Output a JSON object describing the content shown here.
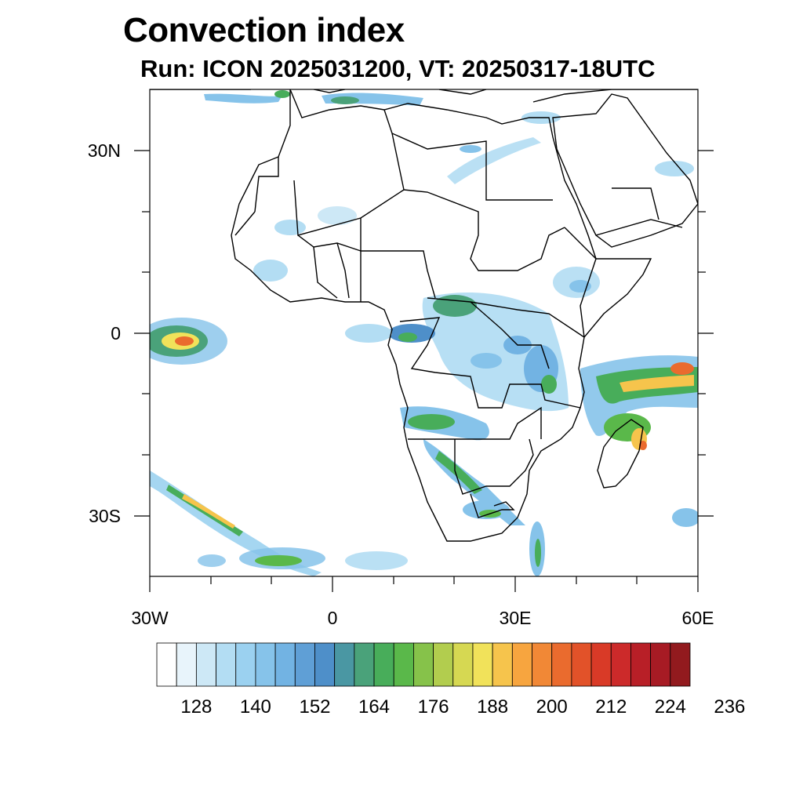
{
  "title": "Convection index",
  "subtitle": "Run: ICON 2025031200,  VT: 20250317-18UTC",
  "axes": {
    "lat_labels": [
      "30N",
      "0",
      "30S"
    ],
    "lon_labels": [
      "30W",
      "0",
      "30E",
      "60E"
    ]
  },
  "map": {
    "region": "Africa",
    "lon_range": [
      -30,
      60
    ],
    "lat_range": [
      -40,
      40
    ],
    "field": "convection index",
    "coastlines": true,
    "country_borders": true
  },
  "colorbar": {
    "tick_labels": [
      "128",
      "140",
      "152",
      "164",
      "176",
      "188",
      "200",
      "212",
      "224",
      "236"
    ],
    "colors": [
      "#ffffff",
      "#e8f4fb",
      "#cde8f6",
      "#b3ddf3",
      "#9bd1f0",
      "#86c3ea",
      "#72b3e3",
      "#5f9fd6",
      "#4e8fc9",
      "#4a97a3",
      "#4aa27a",
      "#48ad5a",
      "#5ab84a",
      "#86c24a",
      "#b2cd4e",
      "#d6d852",
      "#f1e25a",
      "#f6c44c",
      "#f7a53f",
      "#f18836",
      "#ea6b2e",
      "#e25229",
      "#d93a27",
      "#cc2a2a",
      "#b81f27",
      "#a71b24",
      "#921a1e"
    ]
  }
}
